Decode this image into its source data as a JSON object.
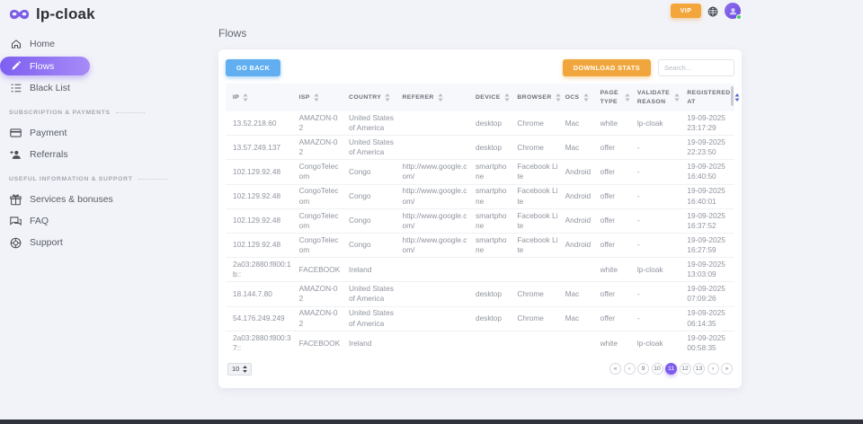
{
  "header": {
    "vip_label": "VIP",
    "logo_text": "lp-cloak"
  },
  "sidebar": {
    "sections": [
      {
        "header": "",
        "items": [
          {
            "label": "Home"
          },
          {
            "label": "Flows"
          },
          {
            "label": "Black List"
          }
        ]
      },
      {
        "header": "Subscription & payments",
        "items": [
          {
            "label": "Payment"
          },
          {
            "label": "Referrals"
          }
        ]
      },
      {
        "header": "Useful information & support",
        "items": [
          {
            "label": "Services & bonuses"
          },
          {
            "label": "FAQ"
          },
          {
            "label": "Support"
          }
        ]
      }
    ]
  },
  "main": {
    "page_title": "Flows",
    "go_back_label": "GO BACK",
    "download_stats_label": "DOWNLOAD STATS",
    "search_placeholder": "Search...",
    "table": {
      "columns": [
        {
          "key": "ip",
          "label": "IP",
          "sorted": false
        },
        {
          "key": "isp",
          "label": "ISP",
          "sorted": false
        },
        {
          "key": "country",
          "label": "COUNTRY",
          "sorted": false
        },
        {
          "key": "referer",
          "label": "REFERER",
          "sorted": false
        },
        {
          "key": "device",
          "label": "DEVICE",
          "sorted": false
        },
        {
          "key": "browser",
          "label": "BROWSER",
          "sorted": false
        },
        {
          "key": "ocs",
          "label": "OCS",
          "sorted": false
        },
        {
          "key": "page_type",
          "label": "PAGE TYPE",
          "sorted": false
        },
        {
          "key": "validate_reason",
          "label": "VALIDATE REASON",
          "sorted": false
        },
        {
          "key": "registered_at",
          "label": "REGISTERED AT",
          "sorted": true
        }
      ],
      "rows": [
        {
          "ip": "13.52.218.60",
          "isp": "AMAZON-02",
          "country": "United States of America",
          "referer": "",
          "device": "desktop",
          "browser": "Chrome",
          "ocs": "Mac",
          "page_type": "white",
          "validate_reason": "lp-cloak",
          "date": "19-09-2025",
          "time": "23:17:29"
        },
        {
          "ip": "13.57.249.137",
          "isp": "AMAZON-02",
          "country": "United States of America",
          "referer": "",
          "device": "desktop",
          "browser": "Chrome",
          "ocs": "Mac",
          "page_type": "offer",
          "validate_reason": "-",
          "date": "19-09-2025",
          "time": "22:23:50"
        },
        {
          "ip": "102.129.92.48",
          "isp": "CongoTelecom",
          "country": "Congo",
          "referer": "http://www.google.com/",
          "device": "smartphone",
          "browser": "Facebook Lite",
          "ocs": "Android",
          "page_type": "offer",
          "validate_reason": "-",
          "date": "19-09-2025",
          "time": "16:40:50"
        },
        {
          "ip": "102.129.92.48",
          "isp": "CongoTelecom",
          "country": "Congo",
          "referer": "http://www.google.com/",
          "device": "smartphone",
          "browser": "Facebook Lite",
          "ocs": "Android",
          "page_type": "offer",
          "validate_reason": "-",
          "date": "19-09-2025",
          "time": "16:40:01"
        },
        {
          "ip": "102.129.92.48",
          "isp": "CongoTelecom",
          "country": "Congo",
          "referer": "http://www.google.com/",
          "device": "smartphone",
          "browser": "Facebook Lite",
          "ocs": "Android",
          "page_type": "offer",
          "validate_reason": "-",
          "date": "19-09-2025",
          "time": "16:37:52"
        },
        {
          "ip": "102.129.92.48",
          "isp": "CongoTelecom",
          "country": "Congo",
          "referer": "http://www.google.com/",
          "device": "smartphone",
          "browser": "Facebook Lite",
          "ocs": "Android",
          "page_type": "offer",
          "validate_reason": "-",
          "date": "19-09-2025",
          "time": "16:27:59"
        },
        {
          "ip": "2a03:2880:f800:1b::",
          "isp": "FACEBOOK",
          "country": "Ireland",
          "referer": "",
          "device": "",
          "browser": "",
          "ocs": "",
          "page_type": "white",
          "validate_reason": "lp-cloak",
          "date": "19-09-2025",
          "time": "13:03:09"
        },
        {
          "ip": "18.144.7.80",
          "isp": "AMAZON-02",
          "country": "United States of America",
          "referer": "",
          "device": "desktop",
          "browser": "Chrome",
          "ocs": "Mac",
          "page_type": "offer",
          "validate_reason": "-",
          "date": "19-09-2025",
          "time": "07:09:26"
        },
        {
          "ip": "54.176.249.249",
          "isp": "AMAZON-02",
          "country": "United States of America",
          "referer": "",
          "device": "desktop",
          "browser": "Chrome",
          "ocs": "Mac",
          "page_type": "offer",
          "validate_reason": "-",
          "date": "19-09-2025",
          "time": "06:14:35"
        },
        {
          "ip": "2a03:2880:f800:37::",
          "isp": "FACEBOOK",
          "country": "Ireland",
          "referer": "",
          "device": "",
          "browser": "",
          "ocs": "",
          "page_type": "white",
          "validate_reason": "lp-cloak",
          "date": "19-09-2025",
          "time": "00:58:35"
        }
      ]
    },
    "pagination": {
      "page_size": "10",
      "first_label": "«",
      "prev_label": "‹",
      "pages": [
        "9",
        "10",
        "11",
        "12",
        "13"
      ],
      "active_page": "11",
      "next_label": "›",
      "last_label": "»"
    }
  },
  "colors": {
    "accent_purple": "#7e5bef",
    "accent_orange": "#f0a63c",
    "accent_blue": "#61aff0",
    "sort_active": "#5b6ace",
    "sort_idle": "#b9bdc7"
  }
}
